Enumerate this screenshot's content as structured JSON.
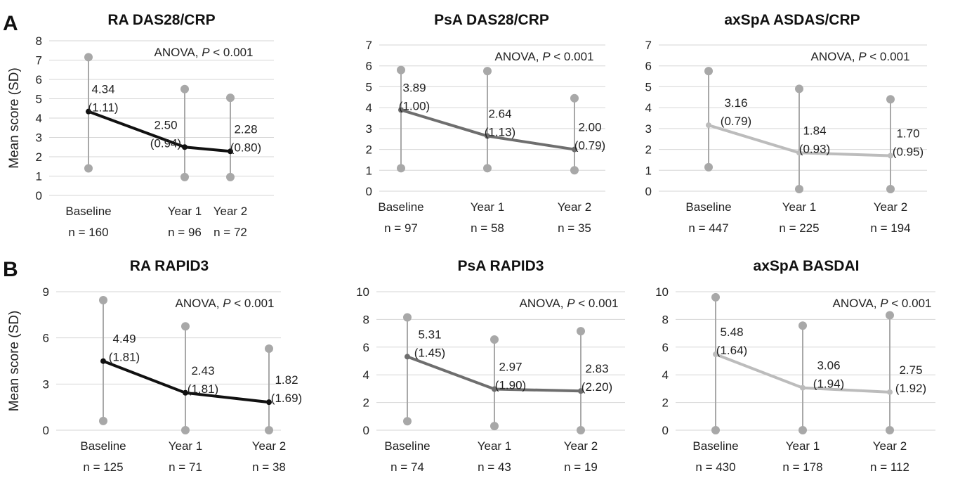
{
  "panels": [
    {
      "letter": "A"
    },
    {
      "letter": "B"
    }
  ],
  "chart_data": [
    {
      "type": "line",
      "title": "RA DAS28/CRP",
      "ylabel": "Mean score (SD)",
      "ylim": [
        0,
        8
      ],
      "yticks": [
        0,
        1,
        2,
        3,
        4,
        5,
        6,
        7,
        8
      ],
      "grid": true,
      "annotation": {
        "text_prefix": "ANOVA, ",
        "text_p": "P",
        "text_suffix": " < 0.001"
      },
      "categories": [
        "Baseline",
        "Year 1",
        "Year 2"
      ],
      "n_labels": [
        "n = 160",
        "n = 96",
        "n = 72"
      ],
      "color": "#111111",
      "mean": [
        4.34,
        2.5,
        2.28
      ],
      "sd": [
        1.11,
        0.94,
        0.8
      ],
      "mean_labels": [
        "4.34",
        "2.50",
        "2.28"
      ],
      "sd_labels": [
        "(1.11)",
        "(0.94)",
        "(0.80)"
      ],
      "range_min": [
        1.4,
        0.95,
        0.95
      ],
      "range_max": [
        7.15,
        5.5,
        5.05
      ]
    },
    {
      "type": "line",
      "title": "PsA DAS28/CRP",
      "ylabel": "",
      "ylim": [
        0,
        7
      ],
      "yticks": [
        0,
        1,
        2,
        3,
        4,
        5,
        6,
        7
      ],
      "grid": true,
      "annotation": {
        "text_prefix": "ANOVA, ",
        "text_p": "P",
        "text_suffix": " < 0.001"
      },
      "categories": [
        "Baseline",
        "Year 1",
        "Year 2"
      ],
      "n_labels": [
        "n = 97",
        "n = 58",
        "n = 35"
      ],
      "color": "#6e6e6e",
      "mean": [
        3.89,
        2.64,
        2.0
      ],
      "sd": [
        1.0,
        1.13,
        0.79
      ],
      "mean_labels": [
        "3.89",
        "2.64",
        "2.00"
      ],
      "sd_labels": [
        "(1.00)",
        "(1.13)",
        "(0.79)"
      ],
      "range_min": [
        1.1,
        1.1,
        1.0
      ],
      "range_max": [
        5.8,
        5.75,
        4.45
      ]
    },
    {
      "type": "line",
      "title": "axSpA ASDAS/CRP",
      "ylabel": "",
      "ylim": [
        0,
        7
      ],
      "yticks": [
        0,
        1,
        2,
        3,
        4,
        5,
        6,
        7
      ],
      "grid": true,
      "annotation": {
        "text_prefix": "ANOVA, ",
        "text_p": "P",
        "text_suffix": " < 0.001"
      },
      "categories": [
        "Baseline",
        "Year 1",
        "Year 2"
      ],
      "n_labels": [
        "n = 447",
        "n = 225",
        "n = 194"
      ],
      "color": "#bcbcbc",
      "mean": [
        3.16,
        1.84,
        1.7
      ],
      "sd": [
        0.79,
        0.93,
        0.95
      ],
      "mean_labels": [
        "3.16",
        "1.84",
        "1.70"
      ],
      "sd_labels": [
        "(0.79)",
        "(0.93)",
        "(0.95)"
      ],
      "range_min": [
        1.15,
        0.1,
        0.1
      ],
      "range_max": [
        5.75,
        4.9,
        4.4
      ]
    },
    {
      "type": "line",
      "title": "RA RAPID3",
      "ylabel": "Mean score (SD)",
      "ylim": [
        0,
        9
      ],
      "yticks": [
        0,
        3,
        6,
        9
      ],
      "grid": true,
      "annotation": {
        "text_prefix": "ANOVA, ",
        "text_p": "P",
        "text_suffix": " < 0.001"
      },
      "categories": [
        "Baseline",
        "Year 1",
        "Year 2"
      ],
      "n_labels": [
        "n = 125",
        "n = 71",
        "n = 38"
      ],
      "color": "#111111",
      "mean": [
        4.49,
        2.43,
        1.82
      ],
      "sd": [
        1.81,
        1.81,
        1.69
      ],
      "mean_labels": [
        "4.49",
        "2.43",
        "1.82"
      ],
      "sd_labels": [
        "(1.81)",
        "(1.81)",
        "(1.69)"
      ],
      "range_min": [
        0.6,
        0.0,
        0.0
      ],
      "range_max": [
        8.45,
        6.75,
        5.3
      ]
    },
    {
      "type": "line",
      "title": "PsA RAPID3",
      "ylabel": "",
      "ylim": [
        0,
        10
      ],
      "yticks": [
        0,
        2,
        4,
        6,
        8,
        10
      ],
      "grid": true,
      "annotation": {
        "text_prefix": "ANOVA, ",
        "text_p": "P",
        "text_suffix": " < 0.001"
      },
      "categories": [
        "Baseline",
        "Year 1",
        "Year 2"
      ],
      "n_labels": [
        "n = 74",
        "n = 43",
        "n = 19"
      ],
      "color": "#6e6e6e",
      "mean": [
        5.31,
        2.97,
        2.83
      ],
      "sd": [
        1.45,
        1.9,
        2.2
      ],
      "mean_labels": [
        "5.31",
        "2.97",
        "2.83"
      ],
      "sd_labels": [
        "(1.45)",
        "(1.90)",
        "(2.20)"
      ],
      "range_min": [
        0.65,
        0.3,
        0.0
      ],
      "range_max": [
        8.15,
        6.55,
        7.15
      ]
    },
    {
      "type": "line",
      "title": "axSpA BASDAI",
      "ylabel": "",
      "ylim": [
        0,
        10
      ],
      "yticks": [
        0,
        2,
        4,
        6,
        8,
        10
      ],
      "grid": true,
      "annotation": {
        "text_prefix": "ANOVA, ",
        "text_p": "P",
        "text_suffix": " < 0.001"
      },
      "categories": [
        "Baseline",
        "Year 1",
        "Year 2"
      ],
      "n_labels": [
        "n = 430",
        "n = 178",
        "n = 112"
      ],
      "color": "#bcbcbc",
      "mean": [
        5.48,
        3.06,
        2.75
      ],
      "sd": [
        1.64,
        1.94,
        1.92
      ],
      "mean_labels": [
        "5.48",
        "3.06",
        "2.75"
      ],
      "sd_labels": [
        "(1.64)",
        "(1.94)",
        "(1.92)"
      ],
      "range_min": [
        0.0,
        0.0,
        0.0
      ],
      "range_max": [
        9.6,
        7.55,
        8.3
      ]
    }
  ]
}
